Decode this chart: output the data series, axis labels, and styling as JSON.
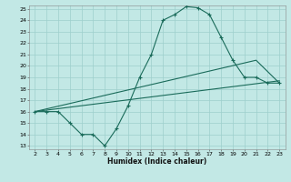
{
  "title": "",
  "xlabel": "Humidex (Indice chaleur)",
  "x_values": [
    2,
    3,
    4,
    5,
    6,
    7,
    8,
    9,
    10,
    11,
    12,
    13,
    14,
    15,
    16,
    17,
    18,
    19,
    20,
    21,
    22,
    23
  ],
  "line1_y": [
    16.0,
    16.0,
    16.0,
    15.0,
    14.0,
    14.0,
    13.0,
    14.5,
    16.5,
    19.0,
    21.0,
    24.0,
    24.5,
    25.2,
    25.1,
    24.5,
    22.5,
    20.5,
    19.0,
    19.0,
    18.5,
    18.5
  ],
  "line2_y": [
    16.0,
    20.5,
    18.5
  ],
  "line2_x": [
    2,
    21,
    23
  ],
  "line3_y": [
    16.0,
    18.7
  ],
  "line3_x": [
    2,
    23
  ],
  "line_color": "#1a6b5a",
  "bg_color": "#c2e8e5",
  "grid_color": "#9dcfcc",
  "ylim": [
    13,
    25
  ],
  "xlim": [
    2,
    23
  ],
  "yticks": [
    13,
    14,
    15,
    16,
    17,
    18,
    19,
    20,
    21,
    22,
    23,
    24,
    25
  ],
  "xticks": [
    2,
    3,
    4,
    5,
    6,
    7,
    8,
    9,
    10,
    11,
    12,
    13,
    14,
    15,
    16,
    17,
    18,
    19,
    20,
    21,
    22,
    23
  ]
}
